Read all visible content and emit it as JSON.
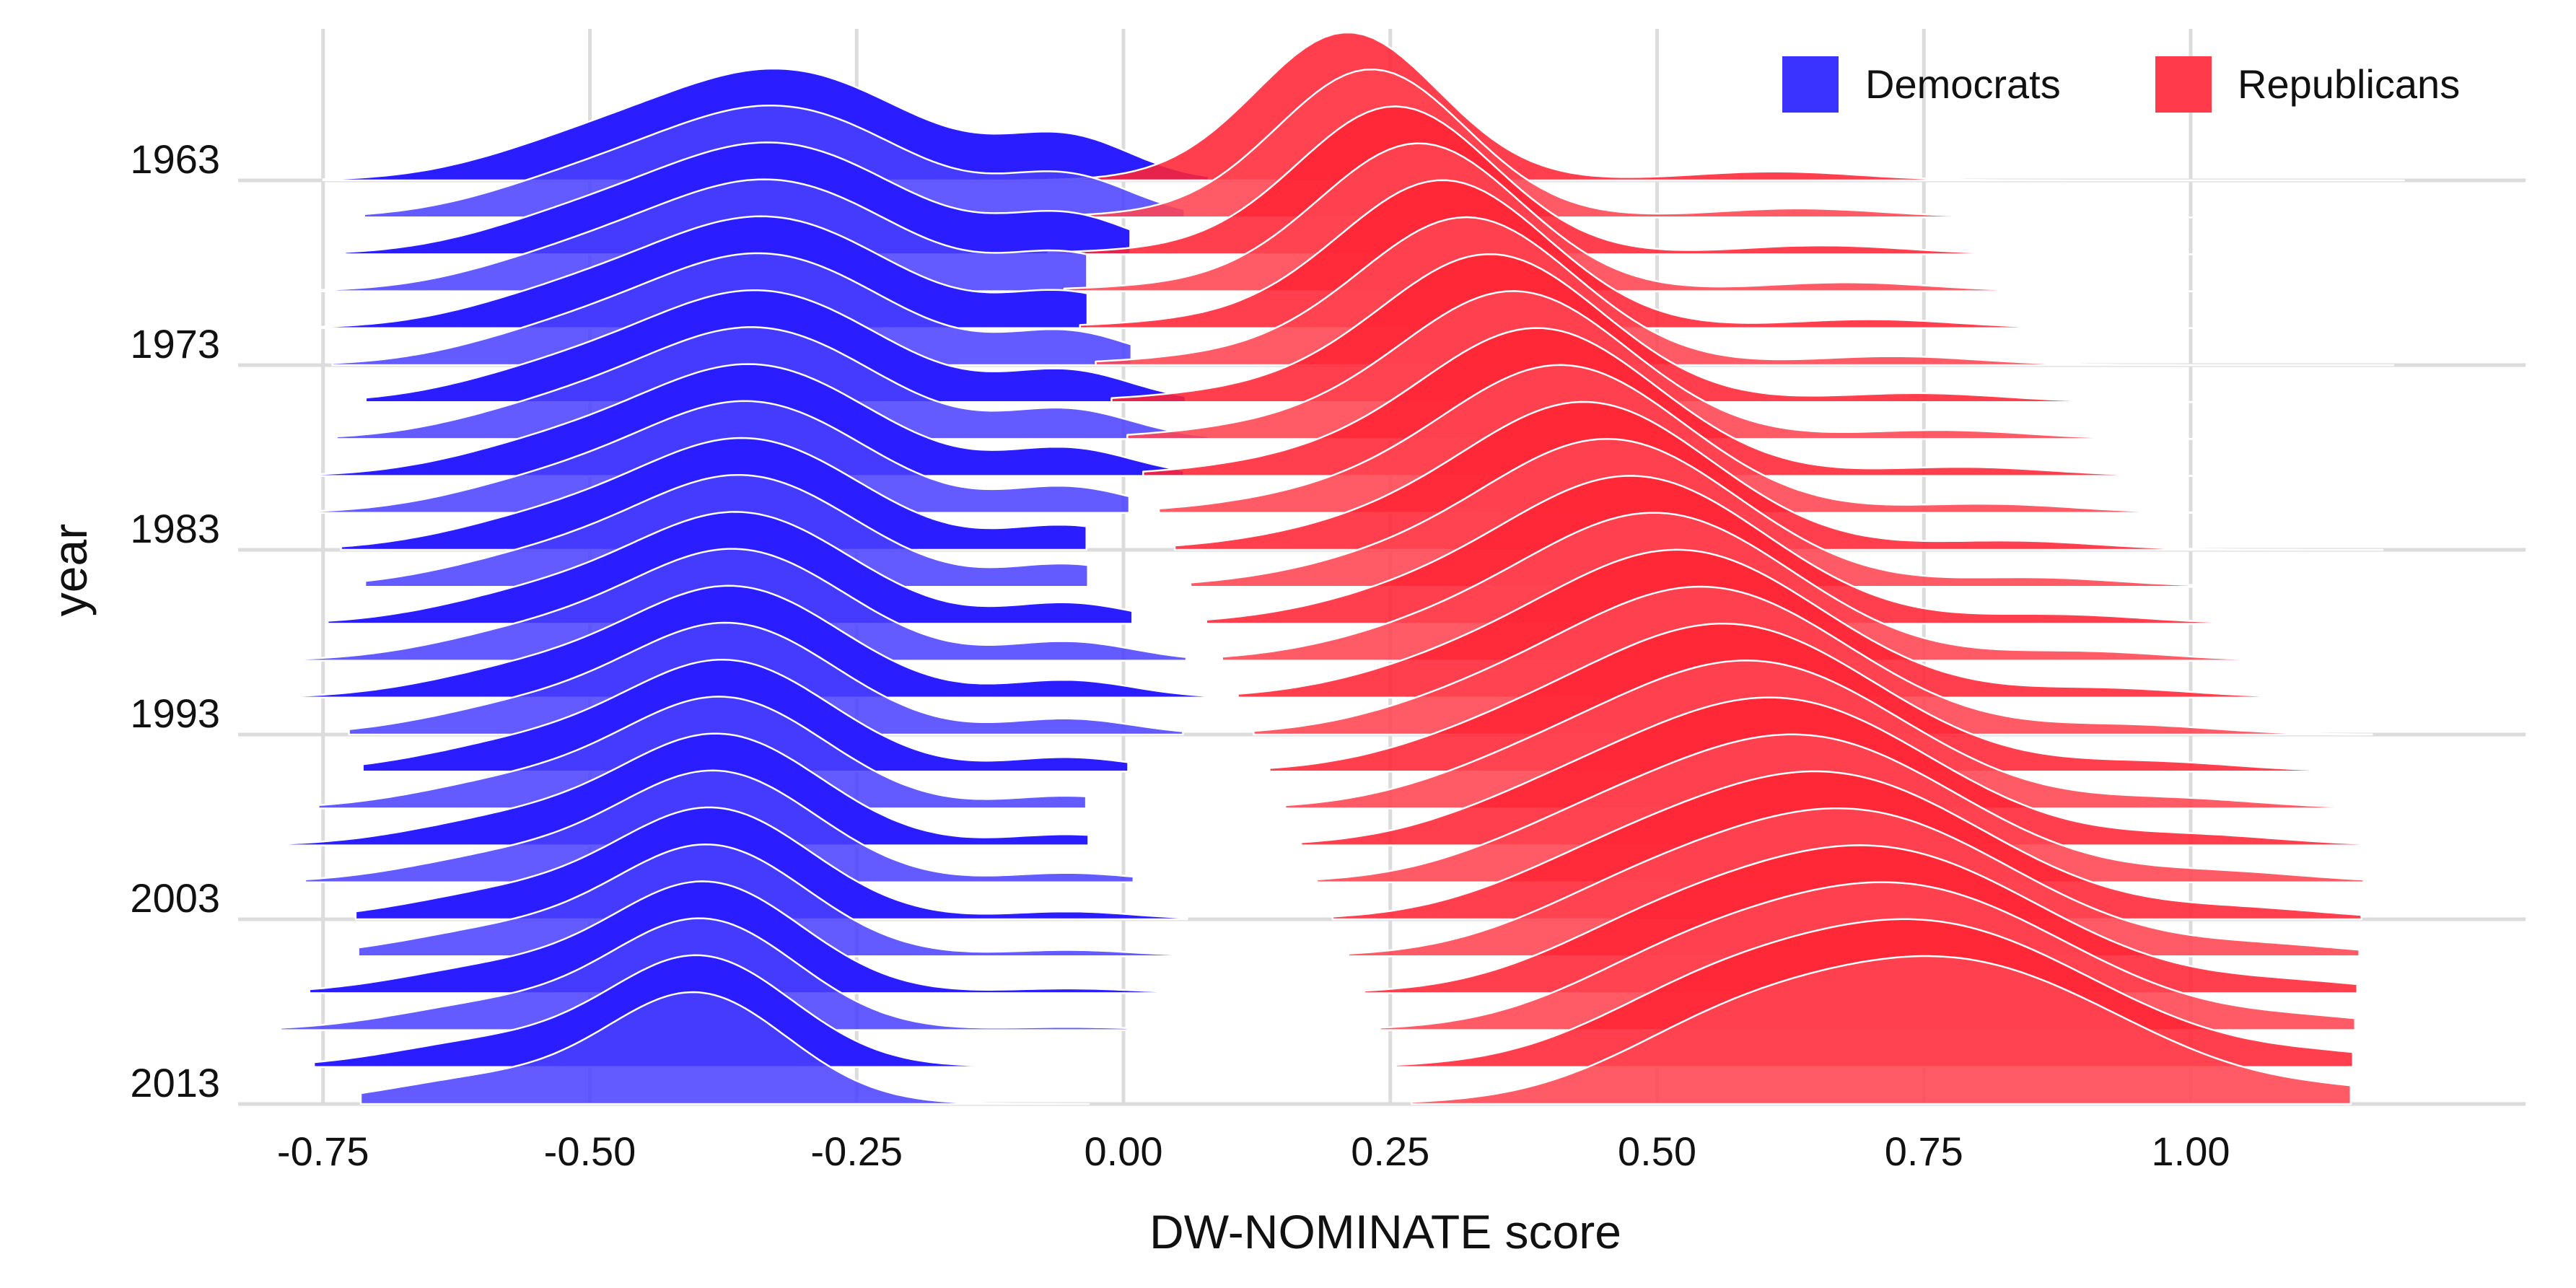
{
  "chart_data": {
    "type": "area",
    "subtype": "ridgeline-density",
    "title": "",
    "xlabel": "DW-NOMINATE score",
    "ylabel": "year",
    "xlim": [
      -0.8,
      1.3
    ],
    "x_ticks": [
      -0.75,
      -0.5,
      -0.25,
      0.0,
      0.25,
      0.5,
      0.75,
      1.0
    ],
    "x_tick_labels": [
      "-0.75",
      "-0.50",
      "-0.25",
      "0.00",
      "0.25",
      "0.50",
      "0.75",
      "1.00"
    ],
    "y_tick_labels": [
      "1963",
      "1973",
      "1983",
      "1993",
      "2003",
      "2013"
    ],
    "year_start": 1963,
    "year_end": 2013,
    "year_step": 2,
    "grid": true,
    "legend": {
      "position": "top-right",
      "entries": [
        {
          "label": "Democrats",
          "color": "#2a1dff"
        },
        {
          "label": "Republicans",
          "color": "#ff2434"
        }
      ]
    },
    "series": [
      {
        "name": "Democrats",
        "color": "#2a1dff",
        "x_range_start": [
          -0.75,
          -0.74
        ],
        "x_range_end": [
          0.02,
          0.0
        ],
        "peak_location_start": -0.32,
        "peak_location_end": -0.4
      },
      {
        "name": "Republicans",
        "color": "#ff2434",
        "x_range_start": [
          -0.1,
          1.2
        ],
        "x_range_end": [
          0.27,
          1.15
        ],
        "peak_location_start": 0.21,
        "peak_location_end": 0.75
      }
    ]
  }
}
